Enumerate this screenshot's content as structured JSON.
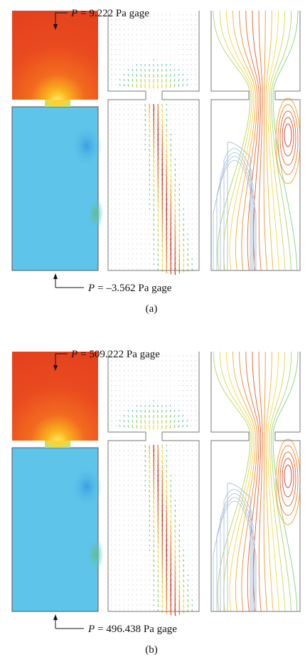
{
  "panels": [
    {
      "inlet": {
        "symbol": "P",
        "text": "= 9.222 Pa gage"
      },
      "outlet": {
        "symbol": "P",
        "text": "= –3.562 Pa gage"
      },
      "caption": "(a)"
    },
    {
      "inlet": {
        "symbol": "P",
        "text": "= 509.222 Pa gage"
      },
      "outlet": {
        "symbol": "P",
        "text": "= 496.438 Pa gage"
      },
      "caption": "(b)"
    }
  ]
}
